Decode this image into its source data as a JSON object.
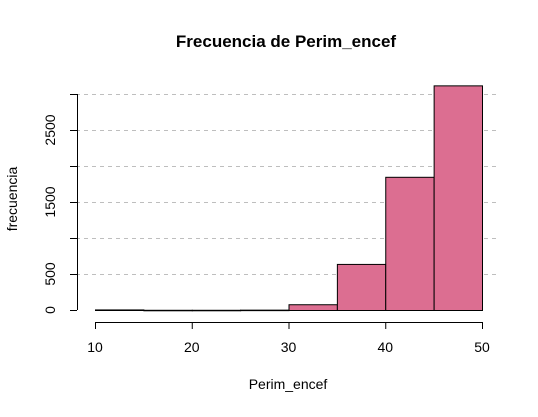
{
  "chart_data": {
    "type": "bar",
    "title": "Frecuencia de Perim_encef",
    "xlabel": "Perim_encef",
    "ylabel": "frecuencia",
    "bins": [
      {
        "x0": 10,
        "x1": 15,
        "value": 8
      },
      {
        "x0": 15,
        "x1": 20,
        "value": 3
      },
      {
        "x0": 20,
        "x1": 25,
        "value": 3
      },
      {
        "x0": 25,
        "x1": 30,
        "value": 5
      },
      {
        "x0": 30,
        "x1": 35,
        "value": 80
      },
      {
        "x0": 35,
        "x1": 40,
        "value": 640
      },
      {
        "x0": 40,
        "x1": 45,
        "value": 1850
      },
      {
        "x0": 45,
        "x1": 50,
        "value": 3120
      }
    ],
    "xlim": [
      10,
      50
    ],
    "ylim": [
      0,
      3000
    ],
    "x_ticks": [
      10,
      20,
      30,
      40,
      50
    ],
    "y_ticks": [
      0,
      500,
      1000,
      1500,
      2000,
      2500,
      3000
    ],
    "y_tick_labels": [
      "0",
      "500",
      "",
      "1500",
      "",
      "2500",
      ""
    ],
    "grid_y": [
      500,
      1000,
      1500,
      2000,
      2500,
      3000
    ],
    "grid": "horizontal dashed",
    "bar_color": "#dc6e91",
    "grid_color": "#bebebe"
  }
}
